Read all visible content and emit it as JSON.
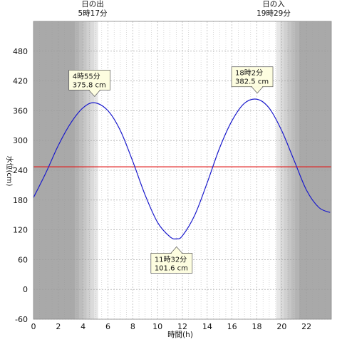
{
  "chart_data": {
    "type": "line",
    "xlabel": "時間(h)",
    "ylabel": "水位(cm)",
    "xlim": [
      0,
      24
    ],
    "ylim": [
      -60,
      540
    ],
    "x_ticks": [
      0,
      2,
      4,
      6,
      8,
      10,
      12,
      14,
      16,
      18,
      20,
      22
    ],
    "y_ticks": [
      -60,
      0,
      60,
      120,
      180,
      240,
      300,
      360,
      420,
      480
    ],
    "reference_line": {
      "y": 247,
      "color": "#e02020"
    },
    "series": [
      {
        "color": "#1a1acc",
        "x": [
          0,
          1,
          2,
          3,
          4,
          4.92,
          6,
          7,
          8,
          9,
          10,
          11,
          11.53,
          12,
          13,
          14,
          15,
          16,
          17,
          18.03,
          19,
          20,
          21,
          22,
          23,
          23.9
        ],
        "y": [
          185,
          235,
          290,
          335,
          366,
          376,
          360,
          320,
          258,
          190,
          135,
          106,
          102,
          108,
          150,
          215,
          285,
          340,
          375,
          383,
          365,
          320,
          260,
          200,
          165,
          155
        ]
      }
    ],
    "annotations": [
      {
        "time": "4時55分",
        "value": "375.8 cm",
        "x": 4.92,
        "y": 375.8
      },
      {
        "time": "11時32分",
        "value": "101.6 cm",
        "x": 11.53,
        "y": 101.6
      },
      {
        "time": "18時2分",
        "value": "382.5 cm",
        "x": 18.03,
        "y": 382.5
      }
    ],
    "sunrise": {
      "label": "日の出",
      "time": "5時17分",
      "x": 5.28
    },
    "sunset": {
      "label": "日の入",
      "time": "19時29分",
      "x": 19.48
    },
    "colors": {
      "night": "#a9a9a9",
      "twilight": "#d4d4d4",
      "day": "#ffffff",
      "grid": "#9a9a9a"
    }
  }
}
